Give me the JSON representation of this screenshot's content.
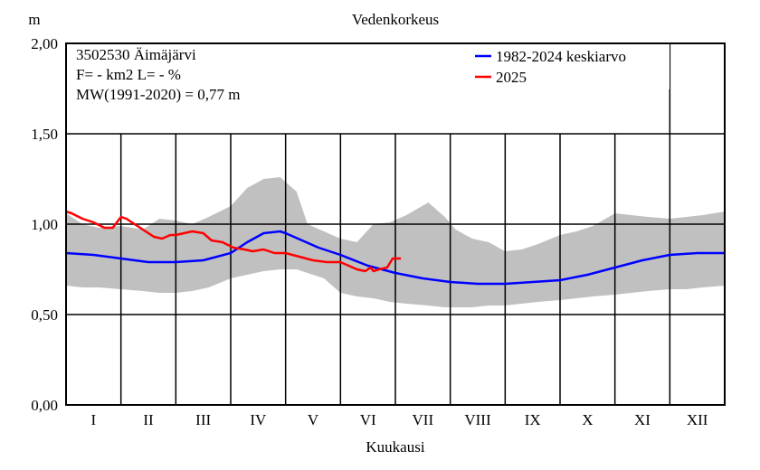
{
  "chart_data": {
    "type": "line",
    "title": "Vedenkorkeus",
    "ylabel": "m",
    "xlabel": "Kuukausi",
    "ylim": [
      0,
      2
    ],
    "y_ticks": [
      "0,00",
      "0,50",
      "1,00",
      "1,50",
      "2,00"
    ],
    "y_tick_values": [
      0,
      0.5,
      1.0,
      1.5,
      2.0
    ],
    "x_range": [
      0,
      12
    ],
    "months": [
      "I",
      "II",
      "III",
      "IV",
      "V",
      "VI",
      "VII",
      "VIII",
      "IX",
      "X",
      "XI",
      "XII"
    ],
    "info_lines": [
      "3502530 Äimäjärvi",
      "F=     -  km2 L=   -  %",
      "MW(1991-2020) = 0,77 m"
    ],
    "legend_position": "top-right",
    "grid": true,
    "colors": {
      "band": "#c0c0c0",
      "mean": "#0000ff",
      "current": "#ff0000",
      "grid": "#000000"
    },
    "band": {
      "name": "",
      "x": [
        0.0,
        0.3,
        0.6,
        1.0,
        1.4,
        1.7,
        2.0,
        2.3,
        2.6,
        3.0,
        3.3,
        3.6,
        3.9,
        4.2,
        4.4,
        4.7,
        5.0,
        5.3,
        5.6,
        5.9,
        6.2,
        6.6,
        6.9,
        7.1,
        7.4,
        7.7,
        8.0,
        8.3,
        8.6,
        9.0,
        9.3,
        9.6,
        10.0,
        10.3,
        10.6,
        11.0,
        11.3,
        11.6,
        12.0
      ],
      "upper": [
        1.06,
        1.0,
        0.98,
        0.99,
        0.97,
        1.03,
        1.02,
        1.0,
        1.04,
        1.1,
        1.2,
        1.25,
        1.26,
        1.18,
        1.0,
        0.96,
        0.92,
        0.9,
        1.0,
        1.01,
        1.05,
        1.12,
        1.04,
        0.97,
        0.92,
        0.9,
        0.85,
        0.86,
        0.89,
        0.94,
        0.96,
        0.99,
        1.06,
        1.05,
        1.04,
        1.03,
        1.04,
        1.05,
        1.07
      ],
      "lower": [
        0.66,
        0.65,
        0.65,
        0.64,
        0.63,
        0.62,
        0.62,
        0.63,
        0.65,
        0.7,
        0.72,
        0.74,
        0.75,
        0.75,
        0.73,
        0.7,
        0.62,
        0.6,
        0.59,
        0.57,
        0.56,
        0.55,
        0.54,
        0.54,
        0.54,
        0.55,
        0.55,
        0.56,
        0.57,
        0.58,
        0.59,
        0.6,
        0.61,
        0.62,
        0.63,
        0.64,
        0.64,
        0.65,
        0.66
      ]
    },
    "series": [
      {
        "name": "1982-2024 keskiarvo",
        "x": [
          0.0,
          0.5,
          1.0,
          1.5,
          2.0,
          2.5,
          3.0,
          3.3,
          3.6,
          3.9,
          4.0,
          4.3,
          4.6,
          5.0,
          5.5,
          6.0,
          6.5,
          7.0,
          7.5,
          8.0,
          8.5,
          9.0,
          9.5,
          10.0,
          10.5,
          11.0,
          11.5,
          12.0
        ],
        "values": [
          0.84,
          0.83,
          0.81,
          0.79,
          0.79,
          0.8,
          0.84,
          0.9,
          0.95,
          0.96,
          0.95,
          0.91,
          0.87,
          0.83,
          0.77,
          0.73,
          0.7,
          0.68,
          0.67,
          0.67,
          0.68,
          0.69,
          0.72,
          0.76,
          0.8,
          0.83,
          0.84,
          0.84
        ]
      },
      {
        "name": "2025",
        "x": [
          0.0,
          0.1,
          0.3,
          0.5,
          0.7,
          0.85,
          1.0,
          1.1,
          1.25,
          1.4,
          1.6,
          1.75,
          1.9,
          2.0,
          2.15,
          2.3,
          2.5,
          2.65,
          2.85,
          3.05,
          3.25,
          3.4,
          3.6,
          3.8,
          4.0,
          4.25,
          4.5,
          4.75,
          5.0,
          5.15,
          5.3,
          5.45,
          5.55,
          5.6,
          5.7,
          5.85,
          5.95,
          6.1
        ],
        "values": [
          1.07,
          1.06,
          1.03,
          1.01,
          0.98,
          0.98,
          1.04,
          1.03,
          1.0,
          0.97,
          0.93,
          0.92,
          0.94,
          0.94,
          0.95,
          0.96,
          0.95,
          0.91,
          0.9,
          0.87,
          0.86,
          0.85,
          0.86,
          0.84,
          0.84,
          0.82,
          0.8,
          0.79,
          0.79,
          0.77,
          0.75,
          0.74,
          0.76,
          0.74,
          0.75,
          0.76,
          0.81,
          0.81
        ]
      }
    ]
  }
}
